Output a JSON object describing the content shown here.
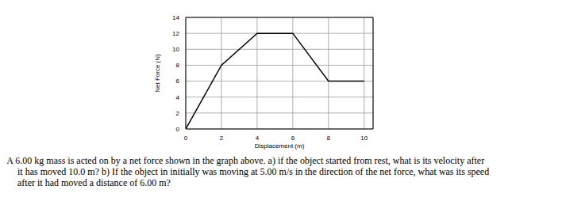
{
  "chart_data": {
    "type": "line",
    "x": [
      0,
      2,
      4,
      6,
      8,
      10
    ],
    "values": [
      0,
      8,
      12,
      12,
      6,
      6
    ],
    "color": "#000000",
    "x_label": "Displacement (m)",
    "y_label": "Net Force (N)",
    "xlim": [
      0,
      10.5
    ],
    "xticks": [
      0,
      2,
      4,
      6,
      8,
      10
    ],
    "ylim": [
      0,
      14
    ],
    "yticks": [
      0,
      2,
      4,
      6,
      8,
      10,
      12,
      14
    ],
    "grid": true
  },
  "question": {
    "lines": [
      ") A 6.00 kg mass is acted on by a net force shown in the graph above. a) if the object started from rest, what is its velocity after",
      "it has moved 10.0 m? b) If the object in initially was moving at 5.00 m/s in the direction of the net force, what was its speed",
      "after it had moved a distance of 6.00 m?"
    ]
  }
}
